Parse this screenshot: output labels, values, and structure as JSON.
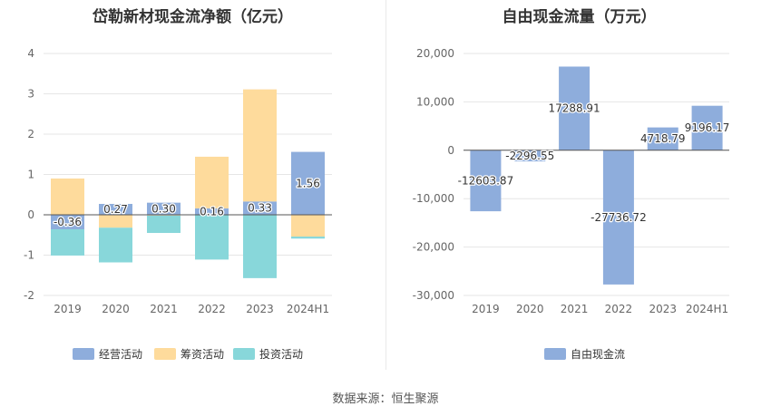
{
  "chart_data": [
    {
      "type": "bar",
      "stacked": true,
      "title": "岱勒新材现金流净额（亿元）",
      "categories": [
        "2019",
        "2020",
        "2021",
        "2022",
        "2023",
        "2024H1"
      ],
      "series": [
        {
          "name": "经营活动",
          "color": "#8eaddc",
          "values": [
            -0.36,
            0.27,
            0.3,
            0.16,
            0.33,
            1.56
          ],
          "labels": [
            "-0.36",
            "0.27",
            "0.30",
            "0.16",
            "0.33",
            "1.56"
          ]
        },
        {
          "name": "筹资活动",
          "color": "#fedb9c",
          "values": [
            0.9,
            -0.32,
            -0.02,
            1.28,
            2.78,
            -0.54
          ]
        },
        {
          "name": "投资活动",
          "color": "#88d7da",
          "values": [
            -0.65,
            -0.86,
            -0.43,
            -1.11,
            -1.57,
            -0.05
          ]
        }
      ],
      "ylim": [
        -2,
        4
      ],
      "yticks": [
        "-2",
        "-1",
        "0",
        "1",
        "2",
        "3",
        "4"
      ],
      "grid": true,
      "legend_position": "bottom"
    },
    {
      "type": "bar",
      "title": "自由现金流量（万元）",
      "categories": [
        "2019",
        "2020",
        "2021",
        "2022",
        "2023",
        "2024H1"
      ],
      "series": [
        {
          "name": "自由现金流",
          "color": "#8eaddc",
          "values": [
            -12603.87,
            -2296.55,
            17288.91,
            -27736.72,
            4718.79,
            9196.17
          ],
          "labels": [
            "-12603.87",
            "-2296.55",
            "17288.91",
            "-27736.72",
            "4718.79",
            "9196.17"
          ]
        }
      ],
      "ylim": [
        -30000,
        20000
      ],
      "yticks": [
        "-30,000",
        "-20,000",
        "-10,000",
        "0",
        "10,000",
        "20,000"
      ],
      "grid": true,
      "legend_position": "bottom"
    }
  ],
  "footer": {
    "source": "数据来源：恒生聚源"
  }
}
